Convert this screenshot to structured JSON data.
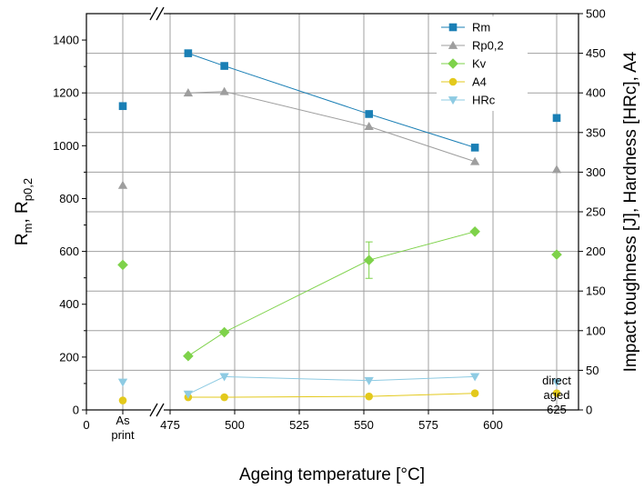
{
  "chart_data": {
    "type": "scatter",
    "title": "",
    "xlabel": "Ageing temperature [°C]",
    "ylabel_left": {
      "main": "R",
      "sub1": "m",
      "sep": ", R",
      "sub2": "p0,2"
    },
    "ylabel_right": "Impact toughness [J], Hardness [HRc], A4",
    "x_ticks": [
      "0",
      "475",
      "500",
      "525",
      "550",
      "575",
      "600"
    ],
    "x_special": {
      "as_print": [
        "As",
        "print"
      ],
      "direct_aged": [
        "direct",
        "aged",
        "625"
      ]
    },
    "y_left": {
      "range": [
        0,
        1500
      ],
      "ticks": [
        0,
        200,
        400,
        600,
        800,
        1000,
        1200,
        1400
      ]
    },
    "y_right": {
      "range": [
        0,
        500
      ],
      "ticks": [
        0,
        50,
        100,
        150,
        200,
        250,
        300,
        350,
        400,
        450,
        500
      ]
    },
    "grid": true,
    "legend_position": "top-right",
    "series": [
      {
        "name": "Rm",
        "axis": "left",
        "marker": "square",
        "color": "#1a7fb5",
        "as_print": 1150,
        "points": [
          [
            482,
            1350
          ],
          [
            496,
            1302
          ],
          [
            552,
            1120
          ],
          [
            593,
            993
          ]
        ],
        "direct_aged": 1105
      },
      {
        "name": "Rp0,2",
        "axis": "left",
        "marker": "triangle-up",
        "color": "#9e9e9e",
        "as_print": 850,
        "points": [
          [
            482,
            1200
          ],
          [
            496,
            1205
          ],
          [
            552,
            1073
          ],
          [
            593,
            940
          ]
        ],
        "direct_aged": 910
      },
      {
        "name": "Kv",
        "axis": "right",
        "marker": "diamond",
        "color": "#7ed24a",
        "as_print": 183,
        "points": [
          [
            482,
            68
          ],
          [
            496,
            98
          ],
          [
            552,
            189
          ],
          [
            593,
            225
          ]
        ],
        "direct_aged": 196,
        "error_bar": {
          "x": 552,
          "low": 166,
          "high": 212
        }
      },
      {
        "name": "A4",
        "axis": "right",
        "marker": "circle",
        "color": "#e3c91c",
        "as_print": 12,
        "points": [
          [
            482,
            16
          ],
          [
            496,
            16
          ],
          [
            552,
            17
          ],
          [
            593,
            21
          ]
        ],
        "direct_aged": 21
      },
      {
        "name": "HRc",
        "axis": "right",
        "marker": "triangle-down",
        "color": "#8ecbe3",
        "as_print": 35,
        "points": [
          [
            482,
            20
          ],
          [
            496,
            42
          ],
          [
            552,
            37
          ],
          [
            593,
            42
          ]
        ],
        "direct_aged": 35
      }
    ]
  }
}
